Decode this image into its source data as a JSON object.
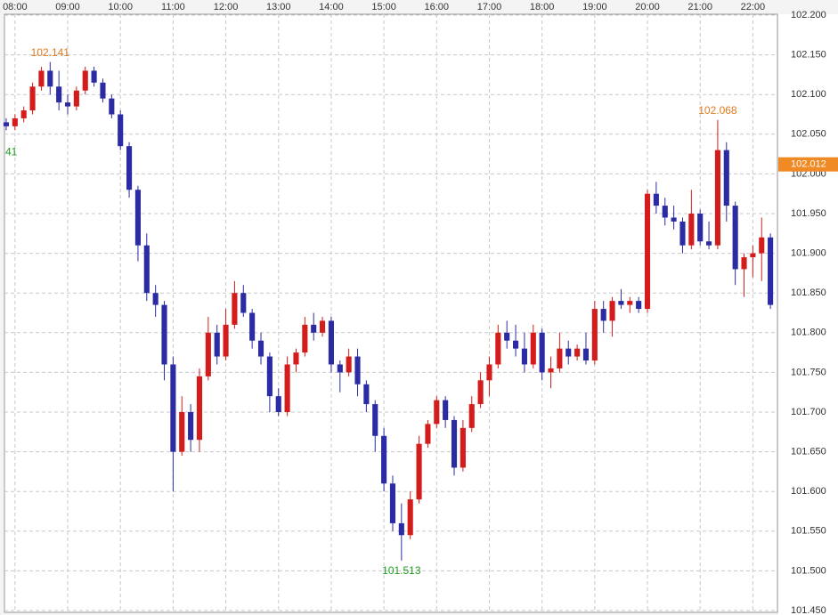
{
  "chart_data": {
    "type": "candlestick",
    "x": [
      "07:50",
      "08:00",
      "08:10",
      "08:20",
      "08:30",
      "08:40",
      "08:50",
      "09:00",
      "09:10",
      "09:20",
      "09:30",
      "09:40",
      "09:50",
      "10:00",
      "10:10",
      "10:20",
      "10:30",
      "10:40",
      "10:50",
      "11:00",
      "11:10",
      "11:20",
      "11:30",
      "11:40",
      "11:50",
      "12:00",
      "12:10",
      "12:20",
      "12:30",
      "12:40",
      "12:50",
      "13:00",
      "13:10",
      "13:20",
      "13:30",
      "13:40",
      "13:50",
      "14:00",
      "14:10",
      "14:20",
      "14:30",
      "14:40",
      "14:50",
      "15:00",
      "15:10",
      "15:20",
      "15:30",
      "15:40",
      "15:50",
      "16:00",
      "16:10",
      "16:20",
      "16:30",
      "16:40",
      "16:50",
      "17:00",
      "17:10",
      "17:20",
      "17:30",
      "17:40",
      "17:50",
      "18:00",
      "18:10",
      "18:20",
      "18:30",
      "18:40",
      "18:50",
      "19:00",
      "19:10",
      "19:20",
      "19:30",
      "19:40",
      "19:50",
      "20:00",
      "20:10",
      "20:20",
      "20:30",
      "20:40",
      "20:50",
      "21:00",
      "21:10",
      "21:20",
      "21:30",
      "21:40",
      "21:50",
      "22:00",
      "22:10",
      "22:20"
    ],
    "open": [
      102.065,
      102.06,
      102.07,
      102.08,
      102.11,
      102.13,
      102.11,
      102.09,
      102.085,
      102.105,
      102.13,
      102.115,
      102.095,
      102.075,
      102.035,
      101.98,
      101.91,
      101.85,
      101.835,
      101.76,
      101.65,
      101.7,
      101.665,
      101.745,
      101.8,
      101.77,
      101.81,
      101.85,
      101.825,
      101.79,
      101.77,
      101.72,
      101.7,
      101.76,
      101.775,
      101.81,
      101.8,
      101.815,
      101.76,
      101.75,
      101.77,
      101.735,
      101.71,
      101.67,
      101.61,
      101.56,
      101.545,
      101.59,
      101.66,
      101.685,
      101.715,
      101.69,
      101.63,
      101.68,
      101.71,
      101.74,
      101.76,
      101.8,
      101.79,
      101.78,
      101.76,
      101.8,
      101.75,
      101.755,
      101.78,
      101.77,
      101.78,
      101.765,
      101.83,
      101.815,
      101.84,
      101.835,
      101.84,
      101.83,
      101.975,
      101.96,
      101.945,
      101.94,
      101.91,
      101.95,
      101.915,
      101.91,
      102.03,
      101.96,
      101.88,
      101.895,
      101.9,
      101.92
    ],
    "high": [
      102.07,
      102.075,
      102.085,
      102.115,
      102.135,
      102.141,
      102.13,
      102.1,
      102.11,
      102.135,
      102.135,
      102.12,
      102.1,
      102.08,
      102.04,
      101.985,
      101.925,
      101.86,
      101.84,
      101.77,
      101.72,
      101.71,
      101.755,
      101.82,
      101.81,
      101.83,
      101.865,
      101.86,
      101.83,
      101.8,
      101.775,
      101.73,
      101.77,
      101.78,
      101.82,
      101.825,
      101.82,
      101.82,
      101.765,
      101.78,
      101.78,
      101.74,
      101.715,
      101.68,
      101.62,
      101.585,
      101.6,
      101.67,
      101.69,
      101.72,
      101.72,
      101.695,
      101.69,
      101.72,
      101.75,
      101.77,
      101.81,
      101.815,
      101.81,
      101.8,
      101.81,
      101.805,
      101.77,
      101.8,
      101.79,
      101.785,
      101.8,
      101.84,
      101.84,
      101.845,
      101.855,
      101.845,
      101.845,
      101.98,
      101.99,
      101.97,
      101.96,
      101.945,
      101.98,
      101.955,
      101.94,
      102.068,
      102.04,
      101.965,
      101.9,
      101.91,
      101.945,
      101.925
    ],
    "low": [
      102.055,
      102.055,
      102.065,
      102.075,
      102.105,
      102.1,
      102.08,
      102.075,
      102.08,
      102.1,
      102.11,
      102.09,
      102.07,
      102.03,
      101.97,
      101.89,
      101.84,
      101.82,
      101.74,
      101.6,
      101.645,
      101.65,
      101.65,
      101.74,
      101.76,
      101.765,
      101.805,
      101.82,
      101.78,
      101.76,
      101.7,
      101.695,
      101.695,
      101.75,
      101.77,
      101.79,
      101.795,
      101.75,
      101.725,
      101.745,
      101.72,
      101.7,
      101.65,
      101.6,
      101.55,
      101.513,
      101.54,
      101.585,
      101.655,
      101.68,
      101.68,
      101.62,
      101.625,
      101.675,
      101.705,
      101.72,
      101.755,
      101.78,
      101.77,
      101.75,
      101.755,
      101.74,
      101.73,
      101.75,
      101.76,
      101.765,
      101.76,
      101.76,
      101.8,
      101.795,
      101.83,
      101.825,
      101.825,
      101.825,
      101.95,
      101.935,
      101.93,
      101.9,
      101.905,
      101.91,
      101.905,
      101.905,
      101.94,
      101.86,
      101.845,
      101.87,
      101.865,
      101.83
    ],
    "close": [
      102.06,
      102.07,
      102.08,
      102.11,
      102.13,
      102.11,
      102.09,
      102.085,
      102.105,
      102.13,
      102.115,
      102.095,
      102.075,
      102.035,
      101.98,
      101.91,
      101.85,
      101.835,
      101.76,
      101.65,
      101.7,
      101.665,
      101.745,
      101.8,
      101.77,
      101.81,
      101.85,
      101.825,
      101.79,
      101.77,
      101.72,
      101.7,
      101.76,
      101.775,
      101.81,
      101.8,
      101.815,
      101.76,
      101.75,
      101.77,
      101.735,
      101.71,
      101.67,
      101.61,
      101.56,
      101.545,
      101.59,
      101.66,
      101.685,
      101.715,
      101.69,
      101.63,
      101.68,
      101.71,
      101.74,
      101.76,
      101.8,
      101.79,
      101.78,
      101.76,
      101.8,
      101.75,
      101.755,
      101.78,
      101.77,
      101.78,
      101.765,
      101.83,
      101.815,
      101.84,
      101.835,
      101.84,
      101.83,
      101.975,
      101.96,
      101.945,
      101.94,
      101.91,
      101.95,
      101.915,
      101.91,
      102.03,
      101.96,
      101.88,
      101.895,
      101.9,
      101.92,
      101.835
    ],
    "up_color": "#d41c1c",
    "down_color": "#2b2ba3",
    "xlim": [
      "07:48",
      "22:28"
    ],
    "xticks": [
      "08:00",
      "09:00",
      "10:00",
      "11:00",
      "12:00",
      "13:00",
      "14:00",
      "15:00",
      "16:00",
      "17:00",
      "18:00",
      "19:00",
      "20:00",
      "21:00",
      "22:00"
    ],
    "ylim": [
      101.45,
      102.2
    ],
    "yticks": [
      {
        "value": 101.45,
        "label": "101.450"
      },
      {
        "value": 101.5,
        "label": "101.500"
      },
      {
        "value": 101.55,
        "label": "101.550"
      },
      {
        "value": 101.6,
        "label": "101.600"
      },
      {
        "value": 101.65,
        "label": "101.650"
      },
      {
        "value": 101.7,
        "label": "101.700"
      },
      {
        "value": 101.75,
        "label": "101.750"
      },
      {
        "value": 101.8,
        "label": "101.800"
      },
      {
        "value": 101.85,
        "label": "101.850"
      },
      {
        "value": 101.9,
        "label": "101.900"
      },
      {
        "value": 101.95,
        "label": "101.950"
      },
      {
        "value": 102.0,
        "label": "102.000"
      },
      {
        "value": 102.05,
        "label": "102.050"
      },
      {
        "value": 102.1,
        "label": "102.100"
      },
      {
        "value": 102.15,
        "label": "102.150"
      },
      {
        "value": 102.2,
        "label": "102.200"
      }
    ],
    "grid": true,
    "annotations": [
      {
        "text": "102.141",
        "x": "08:40",
        "y": 102.141,
        "position": "above",
        "color": "#e07b1f"
      },
      {
        "text": "102.068",
        "x": "21:20",
        "y": 102.068,
        "position": "above",
        "color": "#e07b1f"
      },
      {
        "text": "101.513",
        "x": "15:20",
        "y": 101.513,
        "position": "below",
        "color": "#1f9a1f"
      },
      {
        "text": "41",
        "y": 102.027,
        "position": "left",
        "color": "#1f9a1f"
      }
    ],
    "current_price": {
      "value": 102.012,
      "label": "102.012",
      "color": "#f08a24"
    }
  }
}
